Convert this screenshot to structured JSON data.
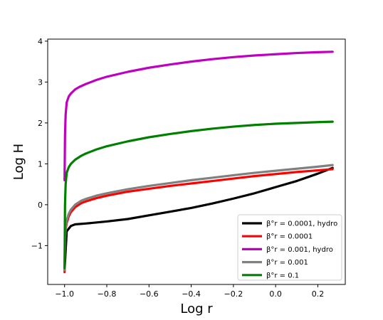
{
  "chart_data": {
    "type": "line",
    "xlabel": "Log r",
    "ylabel": "Log H",
    "xlim": [
      -1.08,
      0.33
    ],
    "ylim": [
      -1.95,
      4.05
    ],
    "xticks": [
      -1.0,
      -0.8,
      -0.6,
      -0.4,
      -0.2,
      0.0,
      0.2
    ],
    "xtick_labels": [
      "−1.0",
      "−0.8",
      "−0.6",
      "−0.4",
      "−0.2",
      "0.0",
      "0.2"
    ],
    "yticks": [
      -1,
      0,
      1,
      2,
      3,
      4
    ],
    "ytick_labels": [
      "−1",
      "0",
      "1",
      "2",
      "3",
      "4"
    ],
    "grid": false,
    "legend_position": "bottom-right",
    "series": [
      {
        "name": "β°r = 0.0001, hydro",
        "color": "#000000",
        "x": [
          -1.0,
          -0.99,
          -0.97,
          -0.95,
          -0.9,
          -0.8,
          -0.7,
          -0.6,
          -0.5,
          -0.4,
          -0.3,
          -0.2,
          -0.1,
          0.0,
          0.1,
          0.2,
          0.27
        ],
        "y": [
          -1.6,
          -0.65,
          -0.52,
          -0.48,
          -0.46,
          -0.41,
          -0.35,
          -0.26,
          -0.17,
          -0.08,
          0.03,
          0.15,
          0.28,
          0.43,
          0.58,
          0.76,
          0.9
        ]
      },
      {
        "name": "β°r = 0.0001",
        "color": "#ff0000",
        "x": [
          -1.0,
          -0.998,
          -0.995,
          -0.99,
          -0.98,
          -0.97,
          -0.95,
          -0.92,
          -0.9,
          -0.85,
          -0.8,
          -0.7,
          -0.6,
          -0.5,
          -0.4,
          -0.3,
          -0.2,
          -0.1,
          0.0,
          0.1,
          0.2,
          0.27
        ],
        "y": [
          -1.65,
          -0.9,
          -0.6,
          -0.45,
          -0.28,
          -0.18,
          -0.06,
          0.04,
          0.08,
          0.16,
          0.22,
          0.32,
          0.39,
          0.46,
          0.52,
          0.58,
          0.64,
          0.7,
          0.75,
          0.8,
          0.84,
          0.87
        ]
      },
      {
        "name": "β°r = 0.001, hydro",
        "color": "#bf00bf",
        "x": [
          -1.0,
          -0.998,
          -0.995,
          -0.99,
          -0.98,
          -0.97,
          -0.96,
          -0.95,
          -0.93,
          -0.9,
          -0.85,
          -0.8,
          -0.7,
          -0.6,
          -0.5,
          -0.4,
          -0.3,
          -0.2,
          -0.1,
          0.0,
          0.1,
          0.2,
          0.27
        ],
        "y": [
          0.6,
          1.7,
          2.2,
          2.5,
          2.65,
          2.72,
          2.77,
          2.82,
          2.88,
          2.95,
          3.05,
          3.13,
          3.25,
          3.35,
          3.43,
          3.5,
          3.56,
          3.61,
          3.65,
          3.68,
          3.71,
          3.73,
          3.74
        ]
      },
      {
        "name": "β°r = 0.001",
        "color": "#808080",
        "x": [
          -1.0,
          -0.998,
          -0.995,
          -0.99,
          -0.98,
          -0.97,
          -0.95,
          -0.92,
          -0.9,
          -0.85,
          -0.8,
          -0.7,
          -0.6,
          -0.5,
          -0.4,
          -0.3,
          -0.2,
          -0.1,
          0.0,
          0.1,
          0.2,
          0.27
        ],
        "y": [
          -1.6,
          -0.85,
          -0.55,
          -0.38,
          -0.22,
          -0.12,
          0.0,
          0.1,
          0.14,
          0.22,
          0.28,
          0.38,
          0.46,
          0.53,
          0.6,
          0.66,
          0.72,
          0.78,
          0.83,
          0.88,
          0.93,
          0.97
        ]
      },
      {
        "name": "β°r = 0.1",
        "color": "#008000",
        "x": [
          -1.0,
          -0.998,
          -0.995,
          -0.99,
          -0.98,
          -0.97,
          -0.95,
          -0.92,
          -0.9,
          -0.85,
          -0.8,
          -0.7,
          -0.6,
          -0.5,
          -0.4,
          -0.3,
          -0.2,
          -0.1,
          0.0,
          0.1,
          0.2,
          0.27
        ],
        "y": [
          -1.55,
          0.0,
          0.5,
          0.78,
          0.92,
          1.0,
          1.1,
          1.2,
          1.25,
          1.35,
          1.43,
          1.55,
          1.65,
          1.73,
          1.8,
          1.86,
          1.91,
          1.95,
          1.98,
          2.0,
          2.02,
          2.03
        ]
      }
    ]
  }
}
